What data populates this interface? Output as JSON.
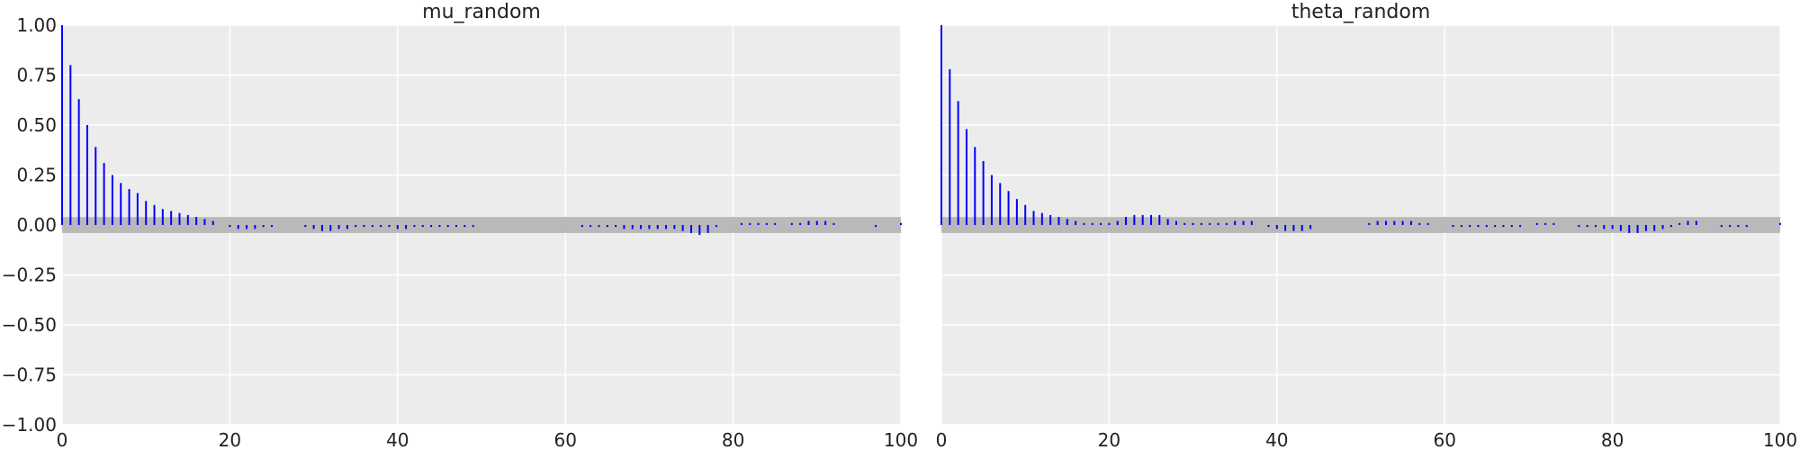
{
  "chart_data": [
    {
      "type": "bar",
      "title": "mu_random",
      "xlabel": "",
      "ylabel": "",
      "xlim": [
        0,
        100
      ],
      "ylim": [
        -1.0,
        1.0
      ],
      "xticks": [
        "0",
        "20",
        "40",
        "60",
        "80",
        "100"
      ],
      "yticks": [
        "1.00",
        "0.75",
        "0.50",
        "0.25",
        "0.00",
        "−0.25",
        "−0.50",
        "−0.75",
        "−1.00"
      ],
      "grid": true,
      "confidence_band": [
        -0.04,
        0.04
      ],
      "colors": {
        "bars": "#0000ff",
        "band": "#b9b9b9",
        "background": "#ececec"
      },
      "lags": [
        0,
        1,
        2,
        3,
        4,
        5,
        6,
        7,
        8,
        9,
        10,
        11,
        12,
        13,
        14,
        15,
        16,
        17,
        18,
        19,
        20,
        21,
        22,
        23,
        24,
        25,
        26,
        27,
        28,
        29,
        30,
        31,
        32,
        33,
        34,
        35,
        36,
        37,
        38,
        39,
        40,
        41,
        42,
        43,
        44,
        45,
        46,
        47,
        48,
        49,
        50,
        51,
        52,
        53,
        54,
        55,
        56,
        57,
        58,
        59,
        60,
        61,
        62,
        63,
        64,
        65,
        66,
        67,
        68,
        69,
        70,
        71,
        72,
        73,
        74,
        75,
        76,
        77,
        78,
        79,
        80,
        81,
        82,
        83,
        84,
        85,
        86,
        87,
        88,
        89,
        90,
        91,
        92,
        93,
        94,
        95,
        96,
        97,
        98,
        99,
        100
      ],
      "values": [
        1.0,
        0.8,
        0.63,
        0.5,
        0.39,
        0.31,
        0.25,
        0.21,
        0.18,
        0.16,
        0.12,
        0.1,
        0.08,
        0.07,
        0.06,
        0.05,
        0.04,
        0.03,
        0.02,
        0.0,
        -0.01,
        -0.02,
        -0.02,
        -0.02,
        -0.01,
        -0.01,
        0.0,
        0.0,
        0.0,
        -0.01,
        -0.02,
        -0.03,
        -0.03,
        -0.02,
        -0.02,
        -0.01,
        -0.01,
        -0.01,
        -0.01,
        -0.01,
        -0.02,
        -0.02,
        -0.01,
        -0.01,
        -0.01,
        -0.01,
        -0.01,
        -0.01,
        -0.01,
        -0.01,
        0.0,
        0.0,
        0.0,
        0.0,
        0.0,
        0.0,
        0.0,
        0.0,
        0.0,
        0.0,
        0.0,
        0.0,
        -0.01,
        -0.01,
        -0.01,
        -0.01,
        -0.01,
        -0.02,
        -0.02,
        -0.02,
        -0.02,
        -0.02,
        -0.02,
        -0.02,
        -0.03,
        -0.04,
        -0.05,
        -0.04,
        -0.01,
        0.0,
        0.0,
        0.01,
        0.01,
        0.01,
        0.01,
        0.01,
        0.0,
        0.01,
        0.01,
        0.02,
        0.02,
        0.02,
        0.01,
        0.0,
        0.0,
        0.0,
        0.0,
        -0.01,
        0.0,
        0.0,
        0.01
      ]
    },
    {
      "type": "bar",
      "title": "theta_random",
      "xlabel": "",
      "ylabel": "",
      "xlim": [
        0,
        100
      ],
      "ylim": [
        -1.0,
        1.0
      ],
      "xticks": [
        "0",
        "20",
        "40",
        "60",
        "80",
        "100"
      ],
      "yticks": [],
      "grid": true,
      "confidence_band": [
        -0.04,
        0.04
      ],
      "colors": {
        "bars": "#0000ff",
        "band": "#b9b9b9",
        "background": "#ececec"
      },
      "lags": [
        0,
        1,
        2,
        3,
        4,
        5,
        6,
        7,
        8,
        9,
        10,
        11,
        12,
        13,
        14,
        15,
        16,
        17,
        18,
        19,
        20,
        21,
        22,
        23,
        24,
        25,
        26,
        27,
        28,
        29,
        30,
        31,
        32,
        33,
        34,
        35,
        36,
        37,
        38,
        39,
        40,
        41,
        42,
        43,
        44,
        45,
        46,
        47,
        48,
        49,
        50,
        51,
        52,
        53,
        54,
        55,
        56,
        57,
        58,
        59,
        60,
        61,
        62,
        63,
        64,
        65,
        66,
        67,
        68,
        69,
        70,
        71,
        72,
        73,
        74,
        75,
        76,
        77,
        78,
        79,
        80,
        81,
        82,
        83,
        84,
        85,
        86,
        87,
        88,
        89,
        90,
        91,
        92,
        93,
        94,
        95,
        96,
        97,
        98,
        99,
        100
      ],
      "values": [
        1.0,
        0.78,
        0.62,
        0.48,
        0.39,
        0.32,
        0.25,
        0.21,
        0.17,
        0.13,
        0.1,
        0.07,
        0.06,
        0.05,
        0.04,
        0.03,
        0.02,
        0.01,
        0.01,
        0.01,
        0.01,
        0.02,
        0.04,
        0.05,
        0.05,
        0.05,
        0.05,
        0.03,
        0.02,
        0.01,
        0.01,
        0.01,
        0.01,
        0.01,
        0.01,
        0.02,
        0.02,
        0.02,
        0.0,
        -0.01,
        -0.02,
        -0.03,
        -0.03,
        -0.03,
        -0.02,
        0.0,
        0.0,
        0.0,
        0.0,
        0.0,
        0.0,
        0.01,
        0.02,
        0.02,
        0.02,
        0.02,
        0.02,
        0.01,
        0.01,
        0.0,
        0.0,
        -0.01,
        -0.01,
        -0.01,
        -0.01,
        -0.01,
        -0.01,
        -0.01,
        -0.01,
        -0.01,
        0.0,
        0.01,
        0.01,
        0.01,
        0.0,
        0.0,
        -0.01,
        -0.01,
        -0.01,
        -0.02,
        -0.02,
        -0.03,
        -0.04,
        -0.04,
        -0.03,
        -0.03,
        -0.02,
        -0.01,
        0.01,
        0.02,
        0.02,
        0.0,
        0.0,
        -0.01,
        -0.01,
        -0.01,
        -0.01,
        0.0,
        0.0,
        0.0,
        0.01
      ]
    }
  ]
}
